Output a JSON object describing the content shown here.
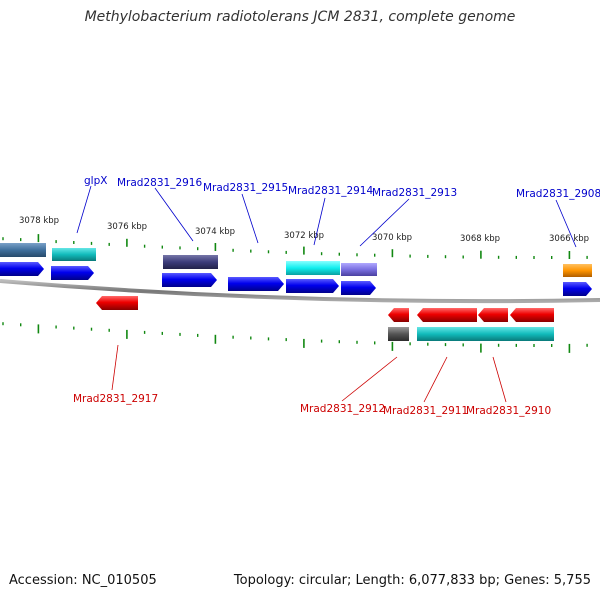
{
  "title": "Methylobacterium radiotolerans JCM 2831, complete genome",
  "footer": {
    "accession": "Accession: NC_010505",
    "summary": "Topology: circular; Length: 6,077,833 bp; Genes: 5,755"
  },
  "colors": {
    "cds_forward": "#0000ee",
    "cds_reverse": "#ee0000",
    "label_forward": "#0000cc",
    "label_reverse": "#cc0000",
    "tick": "#118811",
    "backbone": "#888888"
  },
  "scale": {
    "labels": [
      "3078 kbp",
      "3076 kbp",
      "3074 kbp",
      "3072 kbp",
      "3070 kbp",
      "3068 kbp",
      "3066 kbp"
    ]
  },
  "gene_labels": {
    "glpX": "glpX",
    "Mrad2831_2916": "Mrad2831_2916",
    "Mrad2831_2915": "Mrad2831_2915",
    "Mrad2831_2914": "Mrad2831_2914",
    "Mrad2831_2913": "Mrad2831_2913",
    "Mrad2831_2908": "Mrad2831_2908",
    "Mrad2831_2917": "Mrad2831_2917",
    "Mrad2831_2912": "Mrad2831_2912",
    "Mrad2831_2911": "Mrad2831_2911",
    "Mrad2831_2910": "Mrad2831_2910"
  }
}
